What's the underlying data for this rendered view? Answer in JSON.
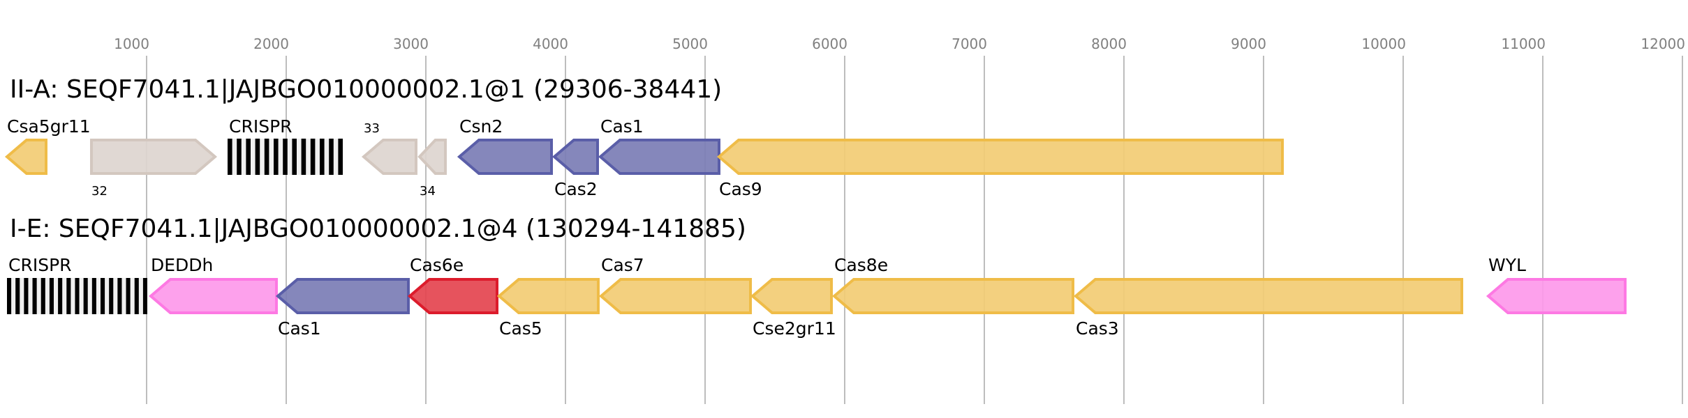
{
  "colors": {
    "yellow": {
      "fill": "#f2cc74",
      "stroke": "#efbc48"
    },
    "gray": {
      "fill": "#ddd5cf",
      "stroke": "#d3c7bf"
    },
    "blue": {
      "fill": "#7b7db5",
      "stroke": "#5a5ea8"
    },
    "pink": {
      "fill": "#fd99ea",
      "stroke": "#fd79e3"
    },
    "red": {
      "fill": "#e4444f",
      "stroke": "#dc1c2c"
    },
    "crispr": "#000000",
    "grid": "#bdbdbd",
    "tick_text": "#808080"
  },
  "axis": {
    "ticks": [
      "1000",
      "2000",
      "3000",
      "4000",
      "5000",
      "6000",
      "7000",
      "8000",
      "9000",
      "10000",
      "11000",
      "12000"
    ],
    "tick_values": [
      1000,
      2000,
      3000,
      4000,
      5000,
      6000,
      7000,
      8000,
      9000,
      10000,
      11000,
      12000
    ]
  },
  "loci": [
    {
      "title": "II-A: SEQF7041.1|JAJBGO010000002.1@1 (29306-38441)",
      "genes": [
        {
          "name": "Csa5gr11",
          "start": -10,
          "end": 290,
          "strand": "-",
          "color": "yellow",
          "label_pos": "above"
        },
        {
          "name": "32",
          "start": 595,
          "end": 1500,
          "strand": "+",
          "color": "gray",
          "label_pos": "below",
          "small": true
        },
        {
          "name": "CRISPR",
          "start": 1580,
          "end": 2405,
          "type": "crispr",
          "repeats": 13,
          "label_pos": "above"
        },
        {
          "name": "33",
          "start": 2545,
          "end": 2940,
          "strand": "-",
          "color": "gray",
          "label_pos": "above",
          "small": true
        },
        {
          "name": "34",
          "start": 2945,
          "end": 3150,
          "strand": "-",
          "color": "gray",
          "label_pos": "below",
          "small": true
        },
        {
          "name": "Csn2",
          "start": 3230,
          "end": 3910,
          "strand": "-",
          "color": "blue",
          "label_pos": "above"
        },
        {
          "name": "Cas2",
          "start": 3910,
          "end": 4240,
          "strand": "-",
          "color": "blue",
          "label_pos": "below"
        },
        {
          "name": "Cas1",
          "start": 4240,
          "end": 5110,
          "strand": "-",
          "color": "blue",
          "label_pos": "above"
        },
        {
          "name": "Cas9",
          "start": 5090,
          "end": 9145,
          "strand": "-",
          "color": "yellow",
          "label_pos": "below"
        }
      ]
    },
    {
      "title": "I-E: SEQF7041.1|JAJBGO010000002.1@4 (130294-141885)",
      "genes": [
        {
          "name": "CRISPR",
          "start": 0,
          "end": 1005,
          "type": "crispr",
          "repeats": 17,
          "label_pos": "above"
        },
        {
          "name": "DEDDh",
          "start": 1020,
          "end": 1940,
          "strand": "-",
          "color": "pink",
          "label_pos": "above"
        },
        {
          "name": "Cas1",
          "start": 1930,
          "end": 2885,
          "strand": "-",
          "color": "blue",
          "label_pos": "below"
        },
        {
          "name": "Cas6e",
          "start": 2875,
          "end": 3520,
          "strand": "-",
          "color": "red",
          "label_pos": "above"
        },
        {
          "name": "Cas5",
          "start": 3515,
          "end": 4245,
          "strand": "-",
          "color": "yellow",
          "label_pos": "below"
        },
        {
          "name": "Cas7",
          "start": 4245,
          "end": 5335,
          "strand": "-",
          "color": "yellow",
          "label_pos": "above"
        },
        {
          "name": "Cse2gr11",
          "start": 5330,
          "end": 5915,
          "strand": "-",
          "color": "yellow",
          "label_pos": "below"
        },
        {
          "name": "Cas8e",
          "start": 5915,
          "end": 7645,
          "strand": "-",
          "color": "yellow",
          "label_pos": "above"
        },
        {
          "name": "Cas3",
          "start": 7645,
          "end": 10430,
          "strand": "-",
          "color": "yellow",
          "label_pos": "below"
        },
        {
          "name": "WYL",
          "start": 10600,
          "end": 11600,
          "strand": "-",
          "color": "pink",
          "label_pos": "above"
        }
      ]
    }
  ]
}
